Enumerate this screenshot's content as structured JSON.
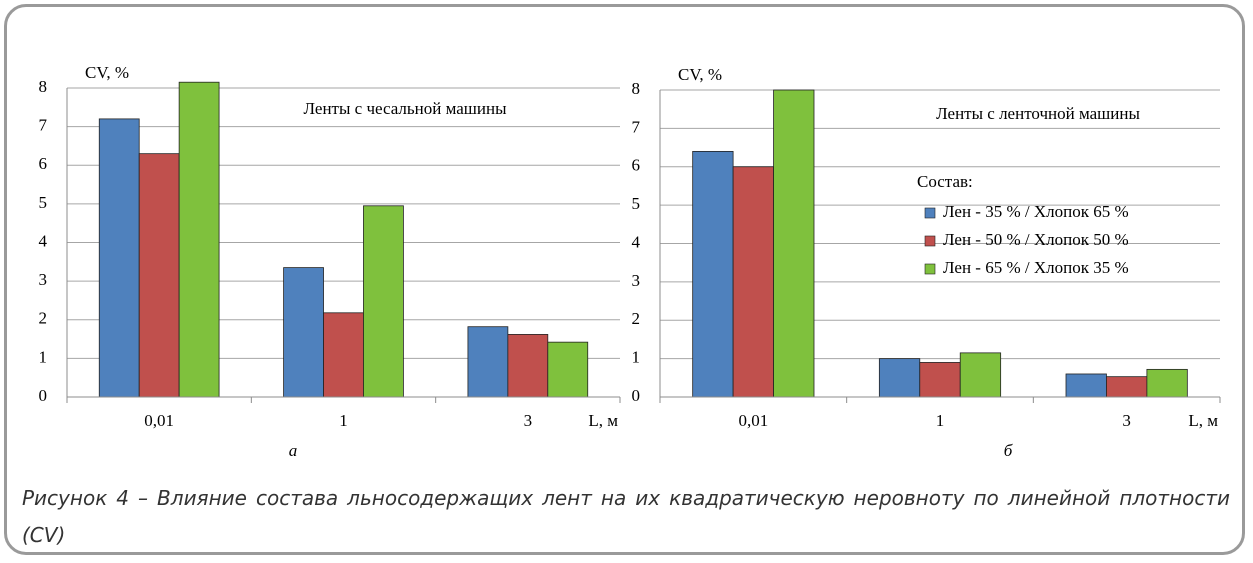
{
  "chart_data": [
    {
      "type": "bar",
      "label": "а",
      "annotation": "Ленты с чесальной машины",
      "y_label": "CV, %",
      "x_label": "L, м",
      "categories": [
        "0,01",
        "1",
        "3"
      ],
      "series": [
        {
          "color": "#4f81bd",
          "values": [
            7.2,
            3.35,
            1.82
          ]
        },
        {
          "color": "#c0504d",
          "values": [
            6.3,
            2.18,
            1.62
          ]
        },
        {
          "color": "#7fc13d",
          "values": [
            8.15,
            4.95,
            1.42
          ]
        }
      ],
      "ylim": [
        0,
        8
      ],
      "yticks": [
        0,
        1,
        2,
        3,
        4,
        5,
        6,
        7,
        8
      ],
      "grid": true
    },
    {
      "type": "bar",
      "label": "б",
      "annotation": "Ленты с ленточной машины",
      "y_label": "CV, %",
      "x_label": "L, м",
      "legend_title": "Состав:",
      "categories": [
        "0,01",
        "1",
        "3"
      ],
      "series": [
        {
          "name": "Лен - 35 % / Хлопок 65 %",
          "color": "#4f81bd",
          "values": [
            6.4,
            1.0,
            0.6
          ]
        },
        {
          "name": "Лен - 50 % / Хлопок 50 %",
          "color": "#c0504d",
          "values": [
            6.0,
            0.9,
            0.53
          ]
        },
        {
          "name": "Лен - 65 % / Хлопок 35 %",
          "color": "#7fc13d",
          "values": [
            8.0,
            1.15,
            0.72
          ]
        }
      ],
      "ylim": [
        0,
        8
      ],
      "yticks": [
        0,
        1,
        2,
        3,
        4,
        5,
        6,
        7,
        8
      ],
      "grid": true
    }
  ],
  "caption": "Рисунок 4 – Влияние состава льносодержащих лент на их квадратическую неровноту по линейной плотности (CV)"
}
